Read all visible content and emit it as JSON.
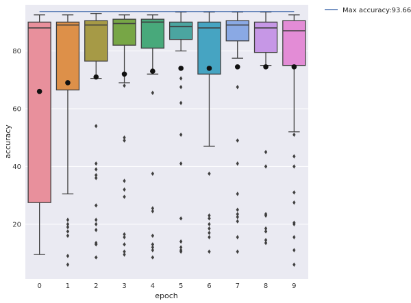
{
  "chart_data": {
    "type": "box",
    "xlabel": "epoch",
    "ylabel": "accuracy",
    "categories": [
      "0",
      "1",
      "2",
      "3",
      "4",
      "5",
      "6",
      "7",
      "8",
      "9"
    ],
    "yticks": [
      20,
      40,
      60,
      80
    ],
    "ylim": [
      1,
      96
    ],
    "grid": true,
    "colors": [
      "#e8909c",
      "#dd9049",
      "#a69a46",
      "#77a646",
      "#48a97b",
      "#4ba5a0",
      "#46a4c2",
      "#8aa9e4",
      "#c697e6",
      "#e38cd6"
    ],
    "boxes": [
      {
        "whislo": 9.5,
        "q1": 27.5,
        "med": 88,
        "q3": 90,
        "whishi": 92.5,
        "mean": 66,
        "fliers": []
      },
      {
        "whislo": 30.5,
        "q1": 66.5,
        "med": 89,
        "q3": 90,
        "whishi": 92.5,
        "mean": 69,
        "fliers": [
          21.5,
          20,
          19,
          17.5,
          16,
          9,
          6
        ]
      },
      {
        "whislo": 70.5,
        "q1": 76.5,
        "med": 89,
        "q3": 90.5,
        "whishi": 93,
        "mean": 71,
        "fliers": [
          54,
          41,
          39,
          37,
          36,
          26.5,
          21.5,
          20,
          18,
          13.5,
          13,
          8.5
        ]
      },
      {
        "whislo": 69,
        "q1": 82,
        "med": 89.5,
        "q3": 91,
        "whishi": 92.5,
        "mean": 72,
        "fliers": [
          68,
          50,
          49,
          35,
          32,
          29.5,
          16.5,
          15.5,
          13,
          10.5,
          9.5
        ]
      },
      {
        "whislo": 72,
        "q1": 81,
        "med": 90,
        "q3": 91,
        "whishi": 92.5,
        "mean": 73,
        "fliers": [
          65.5,
          37.5,
          25.5,
          24.5,
          16,
          13,
          12,
          11,
          8.5
        ]
      },
      {
        "whislo": 80,
        "q1": 84,
        "med": 88.5,
        "q3": 90,
        "whishi": 93.5,
        "mean": 74,
        "fliers": [
          70.5,
          67.5,
          62,
          51,
          41,
          22,
          14,
          12,
          11,
          10.5
        ]
      },
      {
        "whislo": 47,
        "q1": 72,
        "med": 88,
        "q3": 90,
        "whishi": 93.5,
        "mean": 74,
        "fliers": [
          37.5,
          23,
          22,
          20,
          18.5,
          17,
          15.5,
          10.5
        ]
      },
      {
        "whislo": 77.5,
        "q1": 83.5,
        "med": 89,
        "q3": 90.5,
        "whishi": 93.5,
        "mean": 74.5,
        "fliers": [
          67.5,
          49,
          41,
          30.5,
          25,
          23.5,
          22.5,
          21,
          15.5,
          10.5
        ]
      },
      {
        "whislo": 75,
        "q1": 79.5,
        "med": 88,
        "q3": 90,
        "whishi": 93.5,
        "mean": 74.5,
        "fliers": [
          45,
          40,
          23.5,
          23,
          18.5,
          17.5,
          14.5,
          13.5
        ]
      },
      {
        "whislo": 52,
        "q1": 75,
        "med": 87,
        "q3": 90.5,
        "whishi": 92.5,
        "mean": 74.5,
        "fliers": [
          51,
          43.5,
          40,
          31,
          27.5,
          20.5,
          20,
          15.5,
          11,
          6
        ]
      }
    ],
    "reference_line": {
      "value": 93.66,
      "label": "Max accuracy:93.66%",
      "color": "#4c72b0"
    },
    "legend": {
      "placement": "outside-top-right",
      "entries": [
        "Max accuracy:93.66%"
      ]
    }
  }
}
